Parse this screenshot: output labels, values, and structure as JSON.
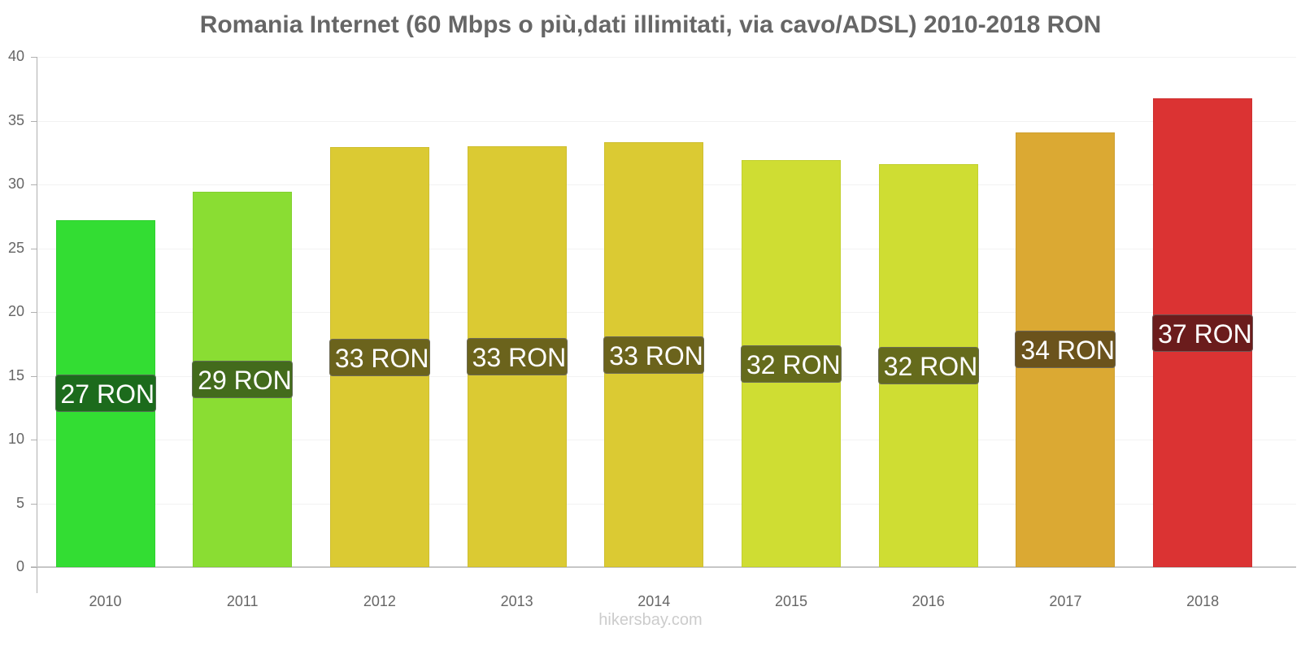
{
  "chart_data": {
    "type": "bar",
    "title": "Romania Internet (60 Mbps o più,dati illimitati, via cavo/ADSL) 2010-2018 RON",
    "xlabel": "",
    "ylabel": "",
    "ylim": [
      0,
      40
    ],
    "yticks": [
      0,
      5,
      10,
      15,
      20,
      25,
      30,
      35,
      40
    ],
    "grid": true,
    "legend": null,
    "categories": [
      "2010",
      "2011",
      "2012",
      "2013",
      "2014",
      "2015",
      "2016",
      "2017",
      "2018"
    ],
    "values": [
      27.2,
      29.4,
      32.9,
      33.0,
      33.3,
      31.9,
      31.6,
      34.1,
      36.75
    ],
    "data_labels": [
      "27 RON",
      "29 RON",
      "33 RON",
      "33 RON",
      "33 RON",
      "32 RON",
      "32 RON",
      "34 RON",
      "37 RON"
    ],
    "bar_colors": [
      "#33dd33",
      "#8add33",
      "#dbca33",
      "#dbca33",
      "#dbca33",
      "#cfdd33",
      "#cfdd33",
      "#dba933",
      "#db3333"
    ],
    "label_colors": [
      "#1c6b1c",
      "#436b1c",
      "#6b631c",
      "#6b631c",
      "#6b631c",
      "#656b1c",
      "#656b1c",
      "#6b531c",
      "#6b1c1c"
    ]
  },
  "footer": {
    "source": "hikersbay.com"
  }
}
